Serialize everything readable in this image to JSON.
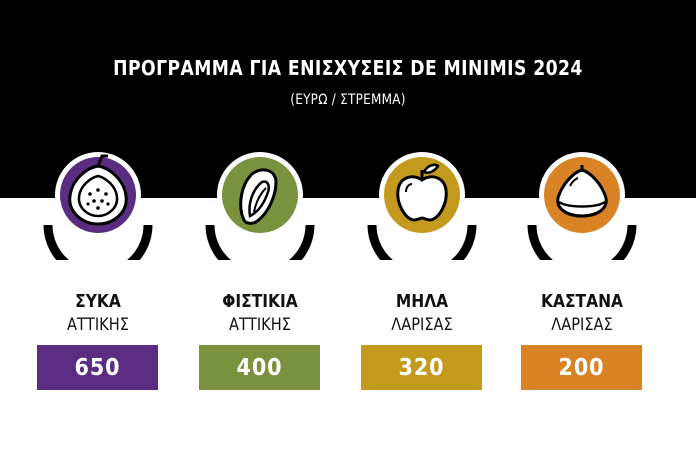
{
  "header": {
    "title": "ΠΡΟΓΡΑΜΜΑ ΓΙΑ ΕΝΙΣΧΥΣΕΙΣ DE MINIMIS 2024",
    "subtitle": "(ΕΥΡΩ / ΣΤΡΕΜΜΑ)"
  },
  "items": [
    {
      "name": "ΣΥΚΑ",
      "region": "ΑΤΤΙΚΗΣ",
      "value": "650",
      "color": "#5a2d82",
      "icon": "fig-icon"
    },
    {
      "name": "ΦΙΣΤΙΚΙΑ",
      "region": "ΑΤΤΙΚΗΣ",
      "value": "400",
      "color": "#7a923d",
      "icon": "pistachio-icon"
    },
    {
      "name": "ΜΗΛΑ",
      "region": "ΛΑΡΙΣΑΣ",
      "value": "320",
      "color": "#c49a1e",
      "icon": "apple-icon"
    },
    {
      "name": "ΚΑΣΤΑΝΑ",
      "region": "ΛΑΡΙΣΑΣ",
      "value": "200",
      "color": "#d88426",
      "icon": "chestnut-icon"
    }
  ]
}
